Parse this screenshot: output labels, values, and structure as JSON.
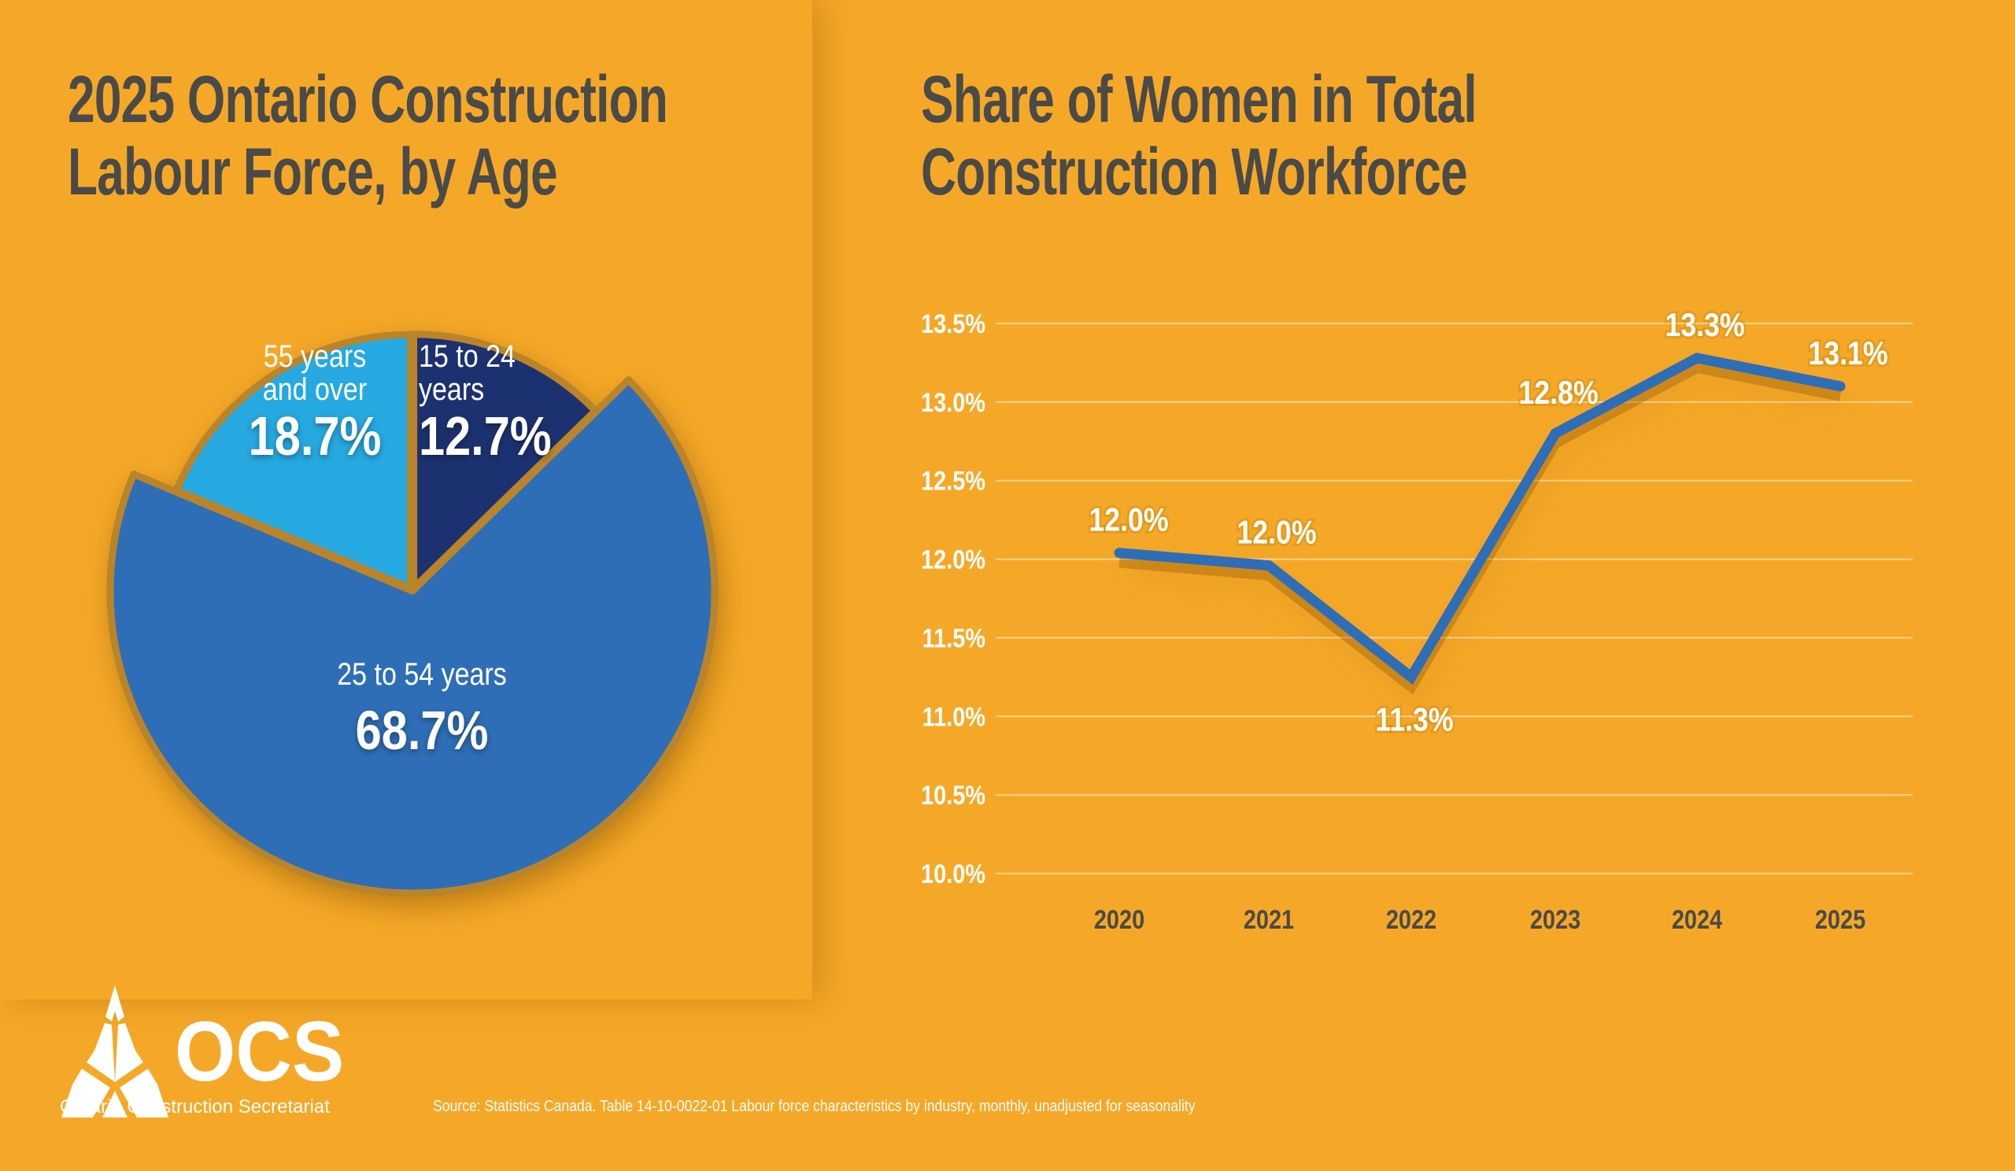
{
  "colors": {
    "background": "#f5a827",
    "title": "#4a4a48",
    "dark_navy": "#1e336f",
    "mid_blue": "#2e6eb6",
    "light_blue": "#28a8e0",
    "line": "#2e6eb6",
    "grid": "#f8d48a"
  },
  "left": {
    "title_line1": "2025 Ontario Construction",
    "title_line2": "Labour Force, by Age"
  },
  "right": {
    "title_line1": "Share of Women in Total",
    "title_line2": "Construction Workforce"
  },
  "chart_data": [
    {
      "type": "pie",
      "title": "2025 Ontario Construction Labour Force, by Age",
      "slices": [
        {
          "label_line1": "15 to 24",
          "label_line2": "years",
          "value": 12.7,
          "display": "12.7%",
          "color": "#1e336f"
        },
        {
          "label_line1": "25 to 54 years",
          "label_line2": "",
          "value": 68.7,
          "display": "68.7%",
          "color": "#2e6eb6"
        },
        {
          "label_line1": "55 years",
          "label_line2": "and over",
          "value": 18.7,
          "display": "18.7%",
          "color": "#28a8e0"
        }
      ]
    },
    {
      "type": "line",
      "title": "Share of Women in Total Construction Workforce",
      "categories": [
        "2020",
        "2021",
        "2022",
        "2023",
        "2024",
        "2025"
      ],
      "values": [
        12.04,
        11.96,
        11.25,
        12.8,
        13.28,
        13.1
      ],
      "data_labels": [
        "12.0%",
        "12.0%",
        "11.3%",
        "12.8%",
        "13.3%",
        "13.1%"
      ],
      "yticks": [
        "10.0%",
        "10.5%",
        "11.0%",
        "11.5%",
        "12.0%",
        "12.5%",
        "13.0%",
        "13.5%"
      ],
      "ylim": [
        10.0,
        13.5
      ],
      "grid": true,
      "xlabel": "",
      "ylabel": ""
    }
  ],
  "footer": {
    "logo_text": "OCS",
    "org_name": "Ontario Construction Secretariat",
    "source": "Source: Statistics Canada. Table 14-10-0022-01 Labour force characteristics by industry, monthly, unadjusted for seasonality"
  }
}
